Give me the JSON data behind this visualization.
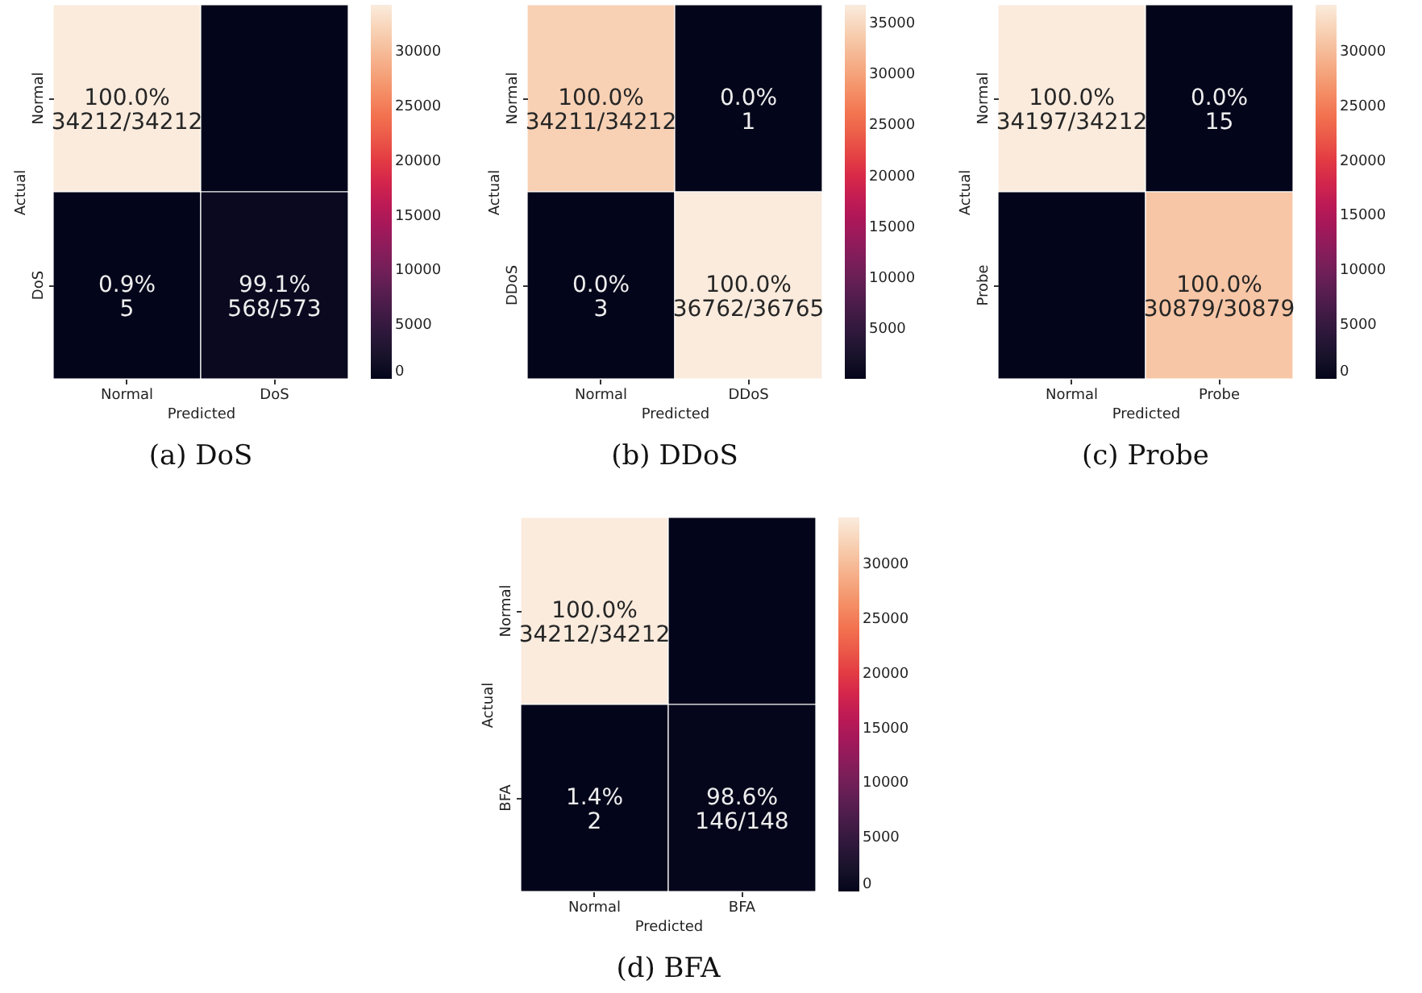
{
  "chart_data": [
    {
      "type": "heatmap",
      "title": "(a) DoS",
      "xlabel": "Predicted",
      "ylabel": "Actual",
      "categories": [
        "Normal",
        "DoS"
      ],
      "y_categories": [
        "Normal",
        "DoS"
      ],
      "cells": [
        [
          34212,
          0
        ],
        [
          5,
          568
        ]
      ],
      "cell_labels": [
        [
          "100.0%\n34212/34212",
          null
        ],
        [
          "0.9%\n5",
          "99.1%\n568/573"
        ]
      ],
      "clim": [
        0,
        34212
      ],
      "cticks": [
        0,
        5000,
        10000,
        15000,
        20000,
        25000,
        30000
      ]
    },
    {
      "type": "heatmap",
      "title": "(b) DDoS",
      "xlabel": "Predicted",
      "ylabel": "Actual",
      "categories": [
        "Normal",
        "DDoS"
      ],
      "y_categories": [
        "Normal",
        "DDoS"
      ],
      "cells": [
        [
          34211,
          1
        ],
        [
          3,
          36762
        ]
      ],
      "cell_labels": [
        [
          "100.0%\n34211/34212",
          "0.0%\n1"
        ],
        [
          "0.0%\n3",
          "100.0%\n36762/36765"
        ]
      ],
      "clim": [
        1,
        36762
      ],
      "cticks": [
        5000,
        10000,
        15000,
        20000,
        25000,
        30000,
        35000
      ]
    },
    {
      "type": "heatmap",
      "title": "(c) Probe",
      "xlabel": "Predicted",
      "ylabel": "Actual",
      "categories": [
        "Normal",
        "Probe"
      ],
      "y_categories": [
        "Normal",
        "Probe"
      ],
      "cells": [
        [
          34197,
          15
        ],
        [
          0,
          30879
        ]
      ],
      "cell_labels": [
        [
          "100.0%\n34197/34212",
          "0.0%\n15"
        ],
        [
          null,
          "100.0%\n30879/30879"
        ]
      ],
      "clim": [
        0,
        34197
      ],
      "cticks": [
        0,
        5000,
        10000,
        15000,
        20000,
        25000,
        30000
      ]
    },
    {
      "type": "heatmap",
      "title": "(d) BFA",
      "xlabel": "Predicted",
      "ylabel": "Actual",
      "categories": [
        "Normal",
        "BFA"
      ],
      "y_categories": [
        "Normal",
        "BFA"
      ],
      "cells": [
        [
          34212,
          0
        ],
        [
          2,
          146
        ]
      ],
      "cell_labels": [
        [
          "100.0%\n34212/34212",
          null
        ],
        [
          "1.4%\n2",
          "98.6%\n146/148"
        ]
      ],
      "clim": [
        0,
        34212
      ],
      "cticks": [
        0,
        5000,
        10000,
        15000,
        20000,
        25000,
        30000
      ]
    }
  ]
}
